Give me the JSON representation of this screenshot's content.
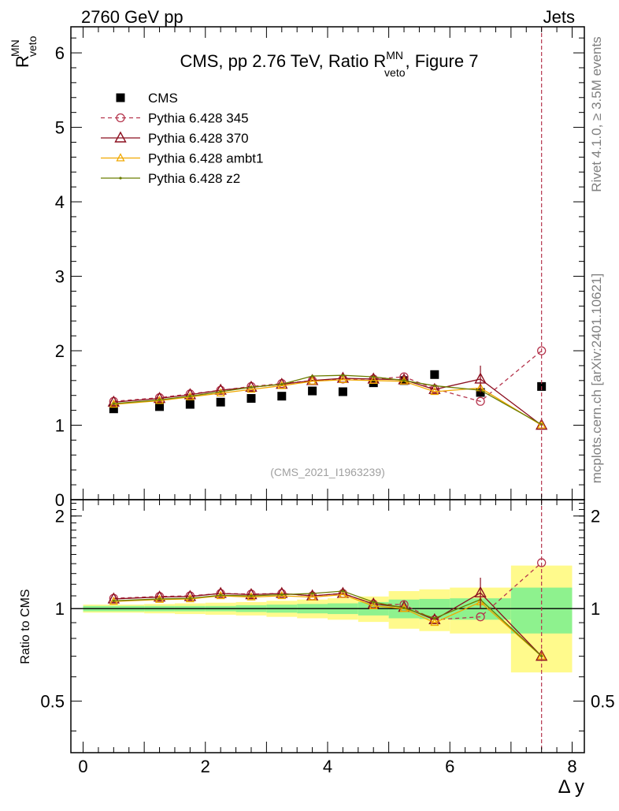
{
  "header": {
    "left_label": "2760 GeV pp",
    "right_label": "Jets"
  },
  "side_text": {
    "rivet": "Rivet 4.1.0, ≥ 3.5M events",
    "mcplots": "mcplots.cern.ch [arXiv:2401.10621]"
  },
  "colors": {
    "cms": "#000000",
    "p345": "#b5354d",
    "p370": "#8b0f1f",
    "ambt1": "#f0a800",
    "z2": "#6b7d00",
    "band_inner": "#8ef28e",
    "band_outer": "#fffa8c",
    "vline": "#b5354d"
  },
  "chart_data": [
    {
      "type": "scatter",
      "panel": "main",
      "title": "CMS, pp 2.76 TeV, Ratio R",
      "title_sup": "MN",
      "title_sub": "veto",
      "title_suffix": ", Figure 7",
      "ylabel": "R",
      "ylabel_sup": "MN",
      "ylabel_sub": "veto",
      "xlabel": "Δ y",
      "xlim": [
        -0.2,
        8.2
      ],
      "ylim": [
        0,
        6.35
      ],
      "y_ticks": [
        "0",
        "1",
        "2",
        "3",
        "4",
        "5",
        "6"
      ],
      "x_ticks": [
        "0",
        "2",
        "4",
        "6",
        "8"
      ],
      "watermark": "(CMS_2021_I1963239)",
      "vline_x": 7.5,
      "x": [
        0.5,
        1.25,
        1.75,
        2.25,
        2.75,
        3.25,
        3.75,
        4.25,
        4.75,
        5.25,
        5.75,
        6.5,
        7.5
      ],
      "series": [
        {
          "name": "CMS",
          "key": "cms",
          "marker": "square",
          "values": [
            1.22,
            1.25,
            1.28,
            1.31,
            1.36,
            1.39,
            1.46,
            1.45,
            1.57,
            1.6,
            1.68,
            1.44,
            1.52
          ]
        },
        {
          "name": "Pythia 6.428 345",
          "key": "p345",
          "marker": "circle",
          "dashed": true,
          "values": [
            1.32,
            1.37,
            1.42,
            1.47,
            1.52,
            1.56,
            1.6,
            1.62,
            1.62,
            1.65,
            1.49,
            1.32,
            2.0
          ]
        },
        {
          "name": "Pythia 6.428 370",
          "key": "p370",
          "marker": "triangle",
          "values": [
            1.31,
            1.36,
            1.41,
            1.47,
            1.51,
            1.55,
            1.6,
            1.63,
            1.62,
            1.61,
            1.48,
            1.62,
            1.0
          ]
        },
        {
          "name": "Pythia 6.428 ambt1",
          "key": "ambt1",
          "marker": "triangle-small",
          "values": [
            1.28,
            1.33,
            1.38,
            1.43,
            1.48,
            1.53,
            1.59,
            1.61,
            1.6,
            1.59,
            1.45,
            1.5,
            1.0
          ]
        },
        {
          "name": "Pythia 6.428 z2",
          "key": "z2",
          "marker": "dot",
          "values": [
            1.29,
            1.34,
            1.39,
            1.45,
            1.51,
            1.55,
            1.66,
            1.67,
            1.65,
            1.6,
            1.53,
            1.47,
            1.01
          ]
        }
      ]
    },
    {
      "type": "line",
      "panel": "ratio",
      "ylabel": "Ratio to CMS",
      "ylim": [
        0.34,
        2.26
      ],
      "y_ticks": [
        "0.5",
        "1",
        "2"
      ],
      "x_edges": [
        0,
        1,
        1.5,
        2,
        2.5,
        3,
        3.5,
        4,
        4.5,
        5,
        5.5,
        6,
        7,
        8
      ],
      "band_inner": [
        0.02,
        0.02,
        0.02,
        0.02,
        0.025,
        0.03,
        0.035,
        0.04,
        0.05,
        0.07,
        0.075,
        0.08,
        0.17
      ],
      "band_outer": [
        0.03,
        0.035,
        0.04,
        0.045,
        0.05,
        0.06,
        0.07,
        0.08,
        0.095,
        0.14,
        0.155,
        0.17,
        0.38
      ],
      "x": [
        0.5,
        1.25,
        1.75,
        2.25,
        2.75,
        3.25,
        3.75,
        4.25,
        4.75,
        5.25,
        5.75,
        6.5,
        7.5
      ],
      "series": [
        {
          "name": "Pythia 6.428 345",
          "key": "p345",
          "values": [
            1.08,
            1.095,
            1.1,
            1.12,
            1.115,
            1.12,
            1.1,
            1.12,
            1.035,
            1.03,
            0.92,
            0.94,
            1.41
          ]
        },
        {
          "name": "Pythia 6.428 370",
          "key": "p370",
          "values": [
            1.075,
            1.09,
            1.095,
            1.12,
            1.11,
            1.12,
            1.1,
            1.12,
            1.035,
            1.01,
            0.92,
            1.125,
            0.7
          ]
        },
        {
          "name": "Pythia 6.428 ambt1",
          "key": "ambt1",
          "values": [
            1.055,
            1.07,
            1.075,
            1.1,
            1.09,
            1.1,
            1.09,
            1.11,
            1.02,
            1.0,
            0.9,
            1.05,
            0.7
          ]
        },
        {
          "name": "Pythia 6.428 z2",
          "key": "z2",
          "values": [
            1.06,
            1.075,
            1.08,
            1.105,
            1.1,
            1.11,
            1.12,
            1.14,
            1.05,
            1.005,
            0.93,
            1.07,
            0.7
          ]
        }
      ]
    }
  ]
}
